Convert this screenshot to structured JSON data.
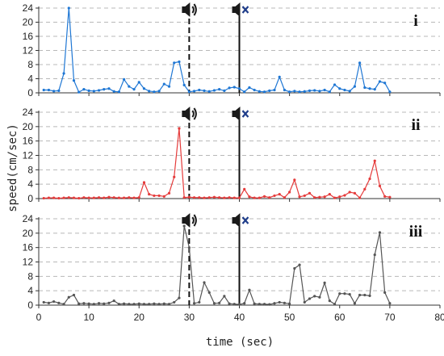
{
  "chart_data": {
    "type": "line",
    "xlabel": "time (sec)",
    "ylabel": "speed(cm/sec)",
    "xlim": [
      0,
      80
    ],
    "ylim": [
      0,
      24
    ],
    "xticks": [
      0,
      10,
      20,
      30,
      40,
      50,
      60,
      70,
      80
    ],
    "yticks": [
      0,
      4,
      8,
      12,
      16,
      20,
      24
    ],
    "grid": "horizontal dashed",
    "markers": [
      {
        "x": 30,
        "style": "dashed",
        "icon": "speaker-on-icon"
      },
      {
        "x": 40,
        "style": "solid",
        "icon": "speaker-muted-icon"
      }
    ],
    "panels": [
      {
        "label": "i",
        "color": "#1f77d4",
        "x": [
          1,
          2,
          3,
          4,
          5,
          6,
          7,
          8,
          9,
          10,
          11,
          12,
          13,
          14,
          15,
          16,
          17,
          18,
          19,
          20,
          21,
          22,
          23,
          24,
          25,
          26,
          27,
          28,
          29,
          30,
          31,
          32,
          33,
          34,
          35,
          36,
          37,
          38,
          39,
          40,
          41,
          42,
          43,
          44,
          45,
          46,
          47,
          48,
          49,
          50,
          51,
          52,
          53,
          54,
          55,
          56,
          57,
          58,
          59,
          60,
          61,
          62,
          63,
          64,
          65,
          66,
          67,
          68,
          69,
          70
        ],
        "values": [
          0.8,
          0.8,
          0.5,
          0.6,
          5.5,
          24,
          3.5,
          0.2,
          1,
          0.6,
          0.5,
          0.7,
          1,
          1.2,
          0.4,
          0.3,
          3.8,
          1.8,
          1,
          3,
          1.2,
          0.5,
          0.3,
          0.5,
          2.5,
          1.8,
          8.5,
          8.8,
          2.2,
          0.3,
          0.5,
          0.8,
          0.6,
          0.4,
          0.7,
          1,
          0.6,
          1.4,
          1.6,
          1.2,
          0.3,
          1.5,
          0.8,
          0.4,
          0.3,
          0.6,
          0.8,
          4.5,
          0.8,
          0.3,
          0.5,
          0.3,
          0.4,
          0.6,
          0.7,
          0.5,
          0.8,
          0.3,
          2.3,
          1.2,
          0.8,
          0.5,
          1.8,
          8.5,
          1.5,
          1.2,
          1,
          3.2,
          2.8,
          0.3
        ]
      },
      {
        "label": "ii",
        "color": "#e53b3b",
        "x": [
          1,
          2,
          3,
          4,
          5,
          6,
          7,
          8,
          9,
          10,
          11,
          12,
          13,
          14,
          15,
          16,
          17,
          18,
          19,
          20,
          21,
          22,
          23,
          24,
          25,
          26,
          27,
          28,
          29,
          30,
          31,
          32,
          33,
          34,
          35,
          36,
          37,
          38,
          39,
          40,
          41,
          42,
          43,
          44,
          45,
          46,
          47,
          48,
          49,
          50,
          51,
          52,
          53,
          54,
          55,
          56,
          57,
          58,
          59,
          60,
          61,
          62,
          63,
          64,
          65,
          66,
          67,
          68,
          69,
          70
        ],
        "values": [
          0.1,
          0.2,
          0.2,
          0.1,
          0.2,
          0.3,
          0.2,
          0.1,
          0.3,
          0.2,
          0.2,
          0.3,
          0.2,
          0.4,
          0.3,
          0.2,
          0.2,
          0.3,
          0.2,
          0.3,
          4.5,
          1.2,
          0.8,
          0.8,
          0.6,
          1.5,
          6,
          19.5,
          0.3,
          0.4,
          0.3,
          0.3,
          0.2,
          0.3,
          0.4,
          0.3,
          0.2,
          0.3,
          0.2,
          0.2,
          2.6,
          0.5,
          0.2,
          0.2,
          0.6,
          0.3,
          0.8,
          1.2,
          0.3,
          1.8,
          5.2,
          0.5,
          0.8,
          1.5,
          0.3,
          0.4,
          0.5,
          1.2,
          0.2,
          0.5,
          0.9,
          1.8,
          1.5,
          0.2,
          2.6,
          5.5,
          10.5,
          3.5,
          0.6,
          0.4
        ]
      },
      {
        "label": "iii",
        "color": "#555555",
        "x": [
          1,
          2,
          3,
          4,
          5,
          6,
          7,
          8,
          9,
          10,
          11,
          12,
          13,
          14,
          15,
          16,
          17,
          18,
          19,
          20,
          21,
          22,
          23,
          24,
          25,
          26,
          27,
          28,
          29,
          30,
          31,
          32,
          33,
          34,
          35,
          36,
          37,
          38,
          39,
          40,
          41,
          42,
          43,
          44,
          45,
          46,
          47,
          48,
          49,
          50,
          51,
          52,
          53,
          54,
          55,
          56,
          57,
          58,
          59,
          60,
          61,
          62,
          63,
          64,
          65,
          66,
          67,
          68,
          69,
          70
        ],
        "values": [
          0.8,
          0.6,
          1,
          0.6,
          0.3,
          2.2,
          2.8,
          0.4,
          0.5,
          0.4,
          0.3,
          0.5,
          0.4,
          0.6,
          1.2,
          0.3,
          0.4,
          0.3,
          0.3,
          0.4,
          0.3,
          0.3,
          0.4,
          0.3,
          0.4,
          0.3,
          0.8,
          2,
          22,
          16,
          0.5,
          0.8,
          6.3,
          3.5,
          0.5,
          0.6,
          2.5,
          0.4,
          0.3,
          0.2,
          0.5,
          4.2,
          0.4,
          0.3,
          0.3,
          0.2,
          0.5,
          0.8,
          0.6,
          0.4,
          10.2,
          11.2,
          0.8,
          1.8,
          2.5,
          2.2,
          6.2,
          1.2,
          0.3,
          3.2,
          3.2,
          3,
          0.5,
          2.8,
          2.8,
          2.6,
          14,
          20.2,
          3.5,
          0.5
        ]
      }
    ]
  }
}
